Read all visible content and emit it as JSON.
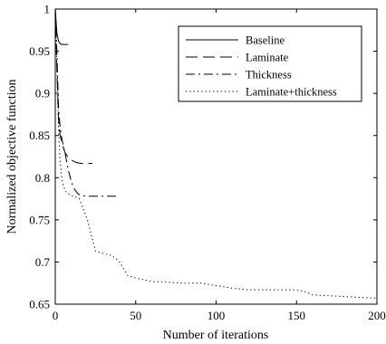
{
  "chart_data": {
    "type": "line",
    "xlabel": "Number of iterations",
    "ylabel": "Normalized objective function",
    "xlim": [
      0,
      200
    ],
    "ylim": [
      0.65,
      1.0
    ],
    "xticks": [
      0,
      50,
      100,
      150,
      200
    ],
    "xtick_labels": [
      "0",
      "50",
      "100",
      "150",
      "200"
    ],
    "yticks": [
      0.65,
      0.7,
      0.75,
      0.8,
      0.85,
      0.9,
      0.95,
      1.0
    ],
    "ytick_labels": [
      "0.65",
      "0.7",
      "0.75",
      "0.8",
      "0.85",
      "0.9",
      "0.95",
      "1"
    ],
    "grid": false,
    "legend_position": "top-right",
    "series": [
      {
        "name": "Baseline",
        "style": "solid",
        "x": [
          0,
          1,
          2,
          3,
          4,
          5,
          6,
          8
        ],
        "y": [
          1.0,
          0.972,
          0.962,
          0.959,
          0.958,
          0.958,
          0.958,
          0.958
        ]
      },
      {
        "name": "Laminate",
        "style": "dashed",
        "x": [
          0,
          1,
          2,
          3,
          4,
          5,
          6,
          8,
          10,
          13,
          16,
          20,
          23
        ],
        "y": [
          1.0,
          0.93,
          0.87,
          0.85,
          0.843,
          0.836,
          0.83,
          0.824,
          0.821,
          0.818,
          0.817,
          0.817,
          0.817
        ]
      },
      {
        "name": "Thickness",
        "style": "dashdot",
        "x": [
          0,
          1,
          2,
          3,
          4,
          5,
          6,
          8,
          10,
          12,
          14,
          16,
          20,
          25,
          30,
          35,
          40
        ],
        "y": [
          1.0,
          0.95,
          0.885,
          0.86,
          0.847,
          0.838,
          0.83,
          0.81,
          0.795,
          0.786,
          0.781,
          0.779,
          0.778,
          0.778,
          0.778,
          0.778,
          0.778
        ]
      },
      {
        "name": "Laminate+thickness",
        "style": "dotted",
        "x": [
          0,
          1,
          2,
          3,
          4,
          5,
          7,
          10,
          15,
          20,
          25,
          30,
          35,
          40,
          45,
          50,
          60,
          70,
          80,
          90,
          100,
          110,
          120,
          130,
          140,
          150,
          155,
          160,
          170,
          180,
          190,
          200
        ],
        "y": [
          1.0,
          0.93,
          0.86,
          0.82,
          0.8,
          0.79,
          0.782,
          0.779,
          0.775,
          0.75,
          0.713,
          0.71,
          0.708,
          0.7,
          0.684,
          0.681,
          0.677,
          0.676,
          0.675,
          0.675,
          0.672,
          0.669,
          0.667,
          0.667,
          0.667,
          0.667,
          0.665,
          0.661,
          0.66,
          0.659,
          0.658,
          0.657
        ]
      }
    ]
  }
}
